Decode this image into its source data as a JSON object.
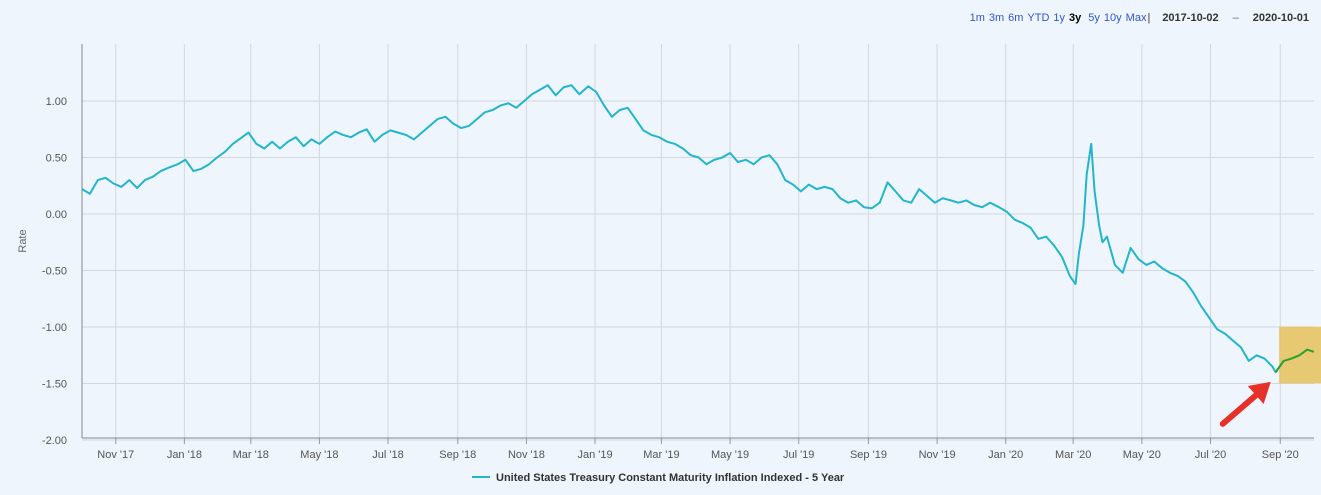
{
  "toolbar": {
    "ranges": [
      "1m",
      "3m",
      "6m",
      "YTD",
      "1y",
      "3y",
      "5y",
      "10y",
      "Max"
    ],
    "selected": "3y",
    "separator": "|",
    "start_date": "2017-10-02",
    "end_date": "2020-10-01",
    "dash": "–"
  },
  "chart_data": {
    "type": "line",
    "ylabel": "Rate",
    "ylim": [
      -2.0,
      1.4
    ],
    "yticks": [
      1.0,
      0.5,
      0.0,
      -0.5,
      -1.0,
      -1.5,
      -2.0
    ],
    "ytick_labels": [
      "1.00",
      "0.50",
      "0.00",
      "-0.50",
      "-1.00",
      "-1.50",
      "-2.00"
    ],
    "xlim": [
      "2017-10-02",
      "2020-10-01"
    ],
    "xticks": [
      "2017-11-01",
      "2018-01-01",
      "2018-03-01",
      "2018-05-01",
      "2018-07-01",
      "2018-09-01",
      "2018-11-01",
      "2019-01-01",
      "2019-03-01",
      "2019-05-01",
      "2019-07-01",
      "2019-09-01",
      "2019-11-01",
      "2020-01-01",
      "2020-03-01",
      "2020-05-01",
      "2020-07-01",
      "2020-09-01"
    ],
    "xtick_labels": [
      "Nov '17",
      "Jan '18",
      "Mar '18",
      "May '18",
      "Jul '18",
      "Sep '18",
      "Nov '18",
      "Jan '19",
      "Mar '19",
      "May '19",
      "Jul '19",
      "Sep '19",
      "Nov '19",
      "Jan '20",
      "Mar '20",
      "May '20",
      "Jul '20",
      "Sep '20"
    ],
    "grid": true,
    "legend_position": "bottom-center",
    "series": [
      {
        "name": "United States Treasury Constant Maturity Inflation Indexed - 5 Year",
        "color": "#22b5cc",
        "points": [
          [
            "2017-10-02",
            0.22
          ],
          [
            "2017-10-09",
            0.18
          ],
          [
            "2017-10-16",
            0.3
          ],
          [
            "2017-10-23",
            0.32
          ],
          [
            "2017-10-30",
            0.27
          ],
          [
            "2017-11-06",
            0.24
          ],
          [
            "2017-11-13",
            0.3
          ],
          [
            "2017-11-20",
            0.23
          ],
          [
            "2017-11-27",
            0.3
          ],
          [
            "2017-12-04",
            0.33
          ],
          [
            "2017-12-11",
            0.38
          ],
          [
            "2017-12-18",
            0.41
          ],
          [
            "2017-12-26",
            0.44
          ],
          [
            "2018-01-02",
            0.48
          ],
          [
            "2018-01-09",
            0.38
          ],
          [
            "2018-01-16",
            0.4
          ],
          [
            "2018-01-23",
            0.44
          ],
          [
            "2018-01-30",
            0.5
          ],
          [
            "2018-02-06",
            0.55
          ],
          [
            "2018-02-13",
            0.62
          ],
          [
            "2018-02-20",
            0.67
          ],
          [
            "2018-02-27",
            0.72
          ],
          [
            "2018-03-06",
            0.62
          ],
          [
            "2018-03-13",
            0.58
          ],
          [
            "2018-03-20",
            0.64
          ],
          [
            "2018-03-27",
            0.58
          ],
          [
            "2018-04-03",
            0.64
          ],
          [
            "2018-04-10",
            0.68
          ],
          [
            "2018-04-17",
            0.6
          ],
          [
            "2018-04-24",
            0.66
          ],
          [
            "2018-05-01",
            0.62
          ],
          [
            "2018-05-08",
            0.68
          ],
          [
            "2018-05-15",
            0.73
          ],
          [
            "2018-05-22",
            0.7
          ],
          [
            "2018-05-29",
            0.68
          ],
          [
            "2018-06-05",
            0.72
          ],
          [
            "2018-06-12",
            0.75
          ],
          [
            "2018-06-19",
            0.64
          ],
          [
            "2018-06-26",
            0.7
          ],
          [
            "2018-07-03",
            0.74
          ],
          [
            "2018-07-10",
            0.72
          ],
          [
            "2018-07-17",
            0.7
          ],
          [
            "2018-07-24",
            0.66
          ],
          [
            "2018-07-31",
            0.72
          ],
          [
            "2018-08-07",
            0.78
          ],
          [
            "2018-08-14",
            0.84
          ],
          [
            "2018-08-21",
            0.86
          ],
          [
            "2018-08-28",
            0.8
          ],
          [
            "2018-09-04",
            0.76
          ],
          [
            "2018-09-11",
            0.78
          ],
          [
            "2018-09-18",
            0.84
          ],
          [
            "2018-09-25",
            0.9
          ],
          [
            "2018-10-02",
            0.92
          ],
          [
            "2018-10-09",
            0.96
          ],
          [
            "2018-10-16",
            0.98
          ],
          [
            "2018-10-23",
            0.94
          ],
          [
            "2018-10-30",
            1.0
          ],
          [
            "2018-11-06",
            1.06
          ],
          [
            "2018-11-13",
            1.1
          ],
          [
            "2018-11-20",
            1.14
          ],
          [
            "2018-11-27",
            1.05
          ],
          [
            "2018-12-04",
            1.12
          ],
          [
            "2018-12-11",
            1.14
          ],
          [
            "2018-12-18",
            1.06
          ],
          [
            "2018-12-26",
            1.13
          ],
          [
            "2019-01-02",
            1.08
          ],
          [
            "2019-01-09",
            0.96
          ],
          [
            "2019-01-16",
            0.86
          ],
          [
            "2019-01-23",
            0.92
          ],
          [
            "2019-01-30",
            0.94
          ],
          [
            "2019-02-06",
            0.84
          ],
          [
            "2019-02-13",
            0.74
          ],
          [
            "2019-02-20",
            0.7
          ],
          [
            "2019-02-27",
            0.68
          ],
          [
            "2019-03-06",
            0.64
          ],
          [
            "2019-03-13",
            0.62
          ],
          [
            "2019-03-20",
            0.58
          ],
          [
            "2019-03-27",
            0.52
          ],
          [
            "2019-04-03",
            0.5
          ],
          [
            "2019-04-10",
            0.44
          ],
          [
            "2019-04-17",
            0.48
          ],
          [
            "2019-04-24",
            0.5
          ],
          [
            "2019-05-01",
            0.54
          ],
          [
            "2019-05-08",
            0.46
          ],
          [
            "2019-05-15",
            0.48
          ],
          [
            "2019-05-22",
            0.44
          ],
          [
            "2019-05-29",
            0.5
          ],
          [
            "2019-06-05",
            0.52
          ],
          [
            "2019-06-12",
            0.44
          ],
          [
            "2019-06-19",
            0.3
          ],
          [
            "2019-06-26",
            0.26
          ],
          [
            "2019-07-03",
            0.2
          ],
          [
            "2019-07-10",
            0.26
          ],
          [
            "2019-07-17",
            0.22
          ],
          [
            "2019-07-24",
            0.24
          ],
          [
            "2019-07-31",
            0.22
          ],
          [
            "2019-08-07",
            0.14
          ],
          [
            "2019-08-14",
            0.1
          ],
          [
            "2019-08-21",
            0.12
          ],
          [
            "2019-08-28",
            0.06
          ],
          [
            "2019-09-04",
            0.05
          ],
          [
            "2019-09-11",
            0.1
          ],
          [
            "2019-09-18",
            0.28
          ],
          [
            "2019-09-25",
            0.2
          ],
          [
            "2019-10-02",
            0.12
          ],
          [
            "2019-10-09",
            0.1
          ],
          [
            "2019-10-16",
            0.22
          ],
          [
            "2019-10-23",
            0.16
          ],
          [
            "2019-10-30",
            0.1
          ],
          [
            "2019-11-06",
            0.14
          ],
          [
            "2019-11-13",
            0.12
          ],
          [
            "2019-11-20",
            0.1
          ],
          [
            "2019-11-27",
            0.12
          ],
          [
            "2019-12-04",
            0.08
          ],
          [
            "2019-12-11",
            0.06
          ],
          [
            "2019-12-18",
            0.1
          ],
          [
            "2019-12-26",
            0.06
          ],
          [
            "2020-01-02",
            0.02
          ],
          [
            "2020-01-09",
            -0.05
          ],
          [
            "2020-01-16",
            -0.08
          ],
          [
            "2020-01-23",
            -0.12
          ],
          [
            "2020-01-30",
            -0.22
          ],
          [
            "2020-02-06",
            -0.2
          ],
          [
            "2020-02-13",
            -0.28
          ],
          [
            "2020-02-20",
            -0.38
          ],
          [
            "2020-02-27",
            -0.55
          ],
          [
            "2020-03-03",
            -0.62
          ],
          [
            "2020-03-06",
            -0.35
          ],
          [
            "2020-03-10",
            -0.1
          ],
          [
            "2020-03-13",
            0.35
          ],
          [
            "2020-03-17",
            0.62
          ],
          [
            "2020-03-20",
            0.2
          ],
          [
            "2020-03-24",
            -0.1
          ],
          [
            "2020-03-27",
            -0.25
          ],
          [
            "2020-03-31",
            -0.2
          ],
          [
            "2020-04-07",
            -0.45
          ],
          [
            "2020-04-14",
            -0.52
          ],
          [
            "2020-04-21",
            -0.3
          ],
          [
            "2020-04-28",
            -0.4
          ],
          [
            "2020-05-05",
            -0.45
          ],
          [
            "2020-05-12",
            -0.42
          ],
          [
            "2020-05-19",
            -0.48
          ],
          [
            "2020-05-26",
            -0.52
          ],
          [
            "2020-06-02",
            -0.55
          ],
          [
            "2020-06-09",
            -0.6
          ],
          [
            "2020-06-16",
            -0.7
          ],
          [
            "2020-06-23",
            -0.82
          ],
          [
            "2020-06-30",
            -0.92
          ],
          [
            "2020-07-07",
            -1.02
          ],
          [
            "2020-07-14",
            -1.06
          ],
          [
            "2020-07-21",
            -1.12
          ],
          [
            "2020-07-28",
            -1.18
          ],
          [
            "2020-08-04",
            -1.3
          ],
          [
            "2020-08-11",
            -1.25
          ],
          [
            "2020-08-18",
            -1.28
          ],
          [
            "2020-08-25",
            -1.35
          ],
          [
            "2020-08-28",
            -1.4
          ],
          [
            "2020-09-04",
            -1.3
          ],
          [
            "2020-09-11",
            -1.28
          ],
          [
            "2020-09-18",
            -1.25
          ],
          [
            "2020-09-25",
            -1.2
          ],
          [
            "2020-10-01",
            -1.22
          ]
        ]
      }
    ],
    "annotations": [
      {
        "type": "highlight",
        "x_range": [
          "2020-08-31",
          "2020-10-01"
        ],
        "y_range": [
          -1.5,
          -1.05
        ],
        "color": "#e6c15a"
      },
      {
        "type": "arrow",
        "points_to": [
          "2020-08-28",
          -1.45
        ],
        "color": "#e8302a"
      }
    ],
    "highlight_line_color": "#2ca02c"
  }
}
